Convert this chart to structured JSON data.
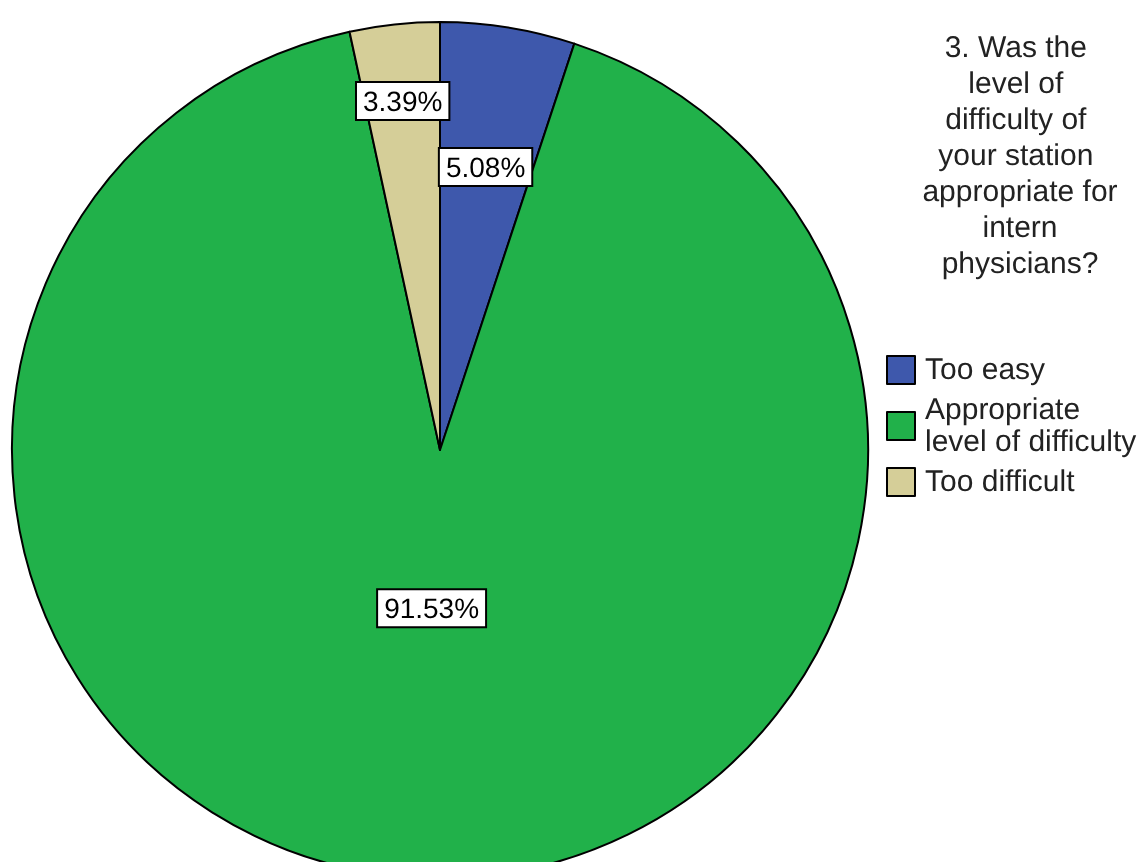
{
  "chart_data": {
    "type": "pie",
    "legend_title": "3. Was the level of difficulty of your station appropriate for intern physicians?",
    "categories": [
      "Too easy",
      "Appropriate level of difficulty",
      "Too difficult"
    ],
    "values": [
      5.08,
      91.53,
      3.39
    ],
    "colors": [
      "#3e58ac",
      "#21b14a",
      "#d5ce98"
    ],
    "value_labels": [
      "5.08%",
      "91.53%",
      "3.39%"
    ],
    "legend": "right"
  }
}
